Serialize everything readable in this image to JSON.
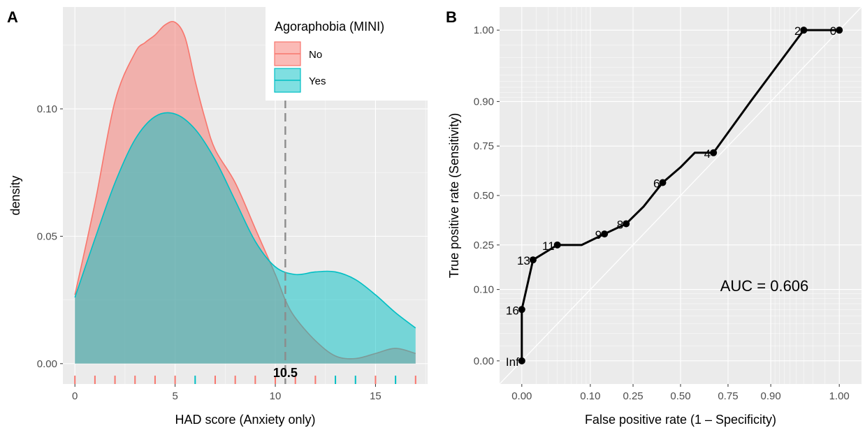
{
  "chart_data": [
    {
      "panel": "A",
      "type": "area",
      "xlabel": "HAD score (Anxiety only)",
      "ylabel": "density",
      "xlim": [
        -0.6,
        17.6
      ],
      "ylim": [
        -0.008,
        0.14
      ],
      "x_ticks": [
        0,
        5,
        10,
        15
      ],
      "y_ticks": [
        0.0,
        0.05,
        0.1
      ],
      "y_tick_labels": [
        "0.00",
        "0.05",
        "0.10"
      ],
      "grid": true,
      "legend": {
        "title": "Agoraphobia (MINI)",
        "placement": "top-right",
        "entries": [
          "No",
          "Yes"
        ]
      },
      "series": [
        {
          "name": "No",
          "color": "#F8766D",
          "fill": "#F8766D",
          "x": [
            0,
            1,
            2,
            3,
            3.5,
            4,
            4.5,
            5,
            5.5,
            6,
            6.5,
            7,
            8,
            9,
            10,
            10.5,
            11,
            12,
            13,
            14,
            15,
            16,
            17
          ],
          "y": [
            0.027,
            0.063,
            0.103,
            0.122,
            0.126,
            0.129,
            0.133,
            0.134,
            0.128,
            0.111,
            0.096,
            0.084,
            0.071,
            0.053,
            0.035,
            0.025,
            0.018,
            0.009,
            0.003,
            0.002,
            0.004,
            0.006,
            0.004
          ]
        },
        {
          "name": "Yes",
          "color": "#00BFC4",
          "fill": "#00BFC4",
          "x": [
            0,
            1,
            2,
            3,
            4,
            5,
            6,
            7,
            8,
            9,
            10,
            11,
            12,
            13,
            14,
            15,
            16,
            17
          ],
          "y": [
            0.026,
            0.049,
            0.071,
            0.088,
            0.097,
            0.098,
            0.092,
            0.08,
            0.064,
            0.048,
            0.038,
            0.035,
            0.036,
            0.036,
            0.033,
            0.027,
            0.02,
            0.014
          ]
        }
      ],
      "rug": [
        {
          "x": 0,
          "group": "No"
        },
        {
          "x": 1,
          "group": "No"
        },
        {
          "x": 2,
          "group": "No"
        },
        {
          "x": 3,
          "group": "No"
        },
        {
          "x": 4,
          "group": "No"
        },
        {
          "x": 5,
          "group": "No"
        },
        {
          "x": 6,
          "group": "Yes"
        },
        {
          "x": 7,
          "group": "No"
        },
        {
          "x": 8,
          "group": "No"
        },
        {
          "x": 9,
          "group": "No"
        },
        {
          "x": 10,
          "group": "No"
        },
        {
          "x": 11,
          "group": "No"
        },
        {
          "x": 12,
          "group": "No"
        },
        {
          "x": 13,
          "group": "Yes"
        },
        {
          "x": 14,
          "group": "Yes"
        },
        {
          "x": 15,
          "group": "No"
        },
        {
          "x": 16,
          "group": "Yes"
        },
        {
          "x": 17,
          "group": "No"
        }
      ],
      "cutoff": {
        "x": 10.5,
        "label": "10.5"
      }
    },
    {
      "panel": "B",
      "type": "line",
      "xlabel": "False positive rate (1 – Specificity)",
      "ylabel": "True positive rate (Sensitivity)",
      "x_ticks": [
        0.0,
        0.1,
        0.25,
        0.5,
        0.75,
        0.9,
        1.0
      ],
      "x_tick_labels": [
        "0.00",
        "0.10",
        "0.25",
        "0.50",
        "0.75",
        "0.90",
        "1.00"
      ],
      "y_ticks": [
        0.0,
        0.1,
        0.25,
        0.5,
        0.75,
        0.9,
        1.0
      ],
      "y_tick_labels": [
        "0.00",
        "0.10",
        "0.25",
        "0.50",
        "0.75",
        "0.90",
        "1.00"
      ],
      "scale": "probit",
      "grid": true,
      "annotation": "AUC = 0.606",
      "curve": [
        {
          "fpr": 0.0,
          "tpr": 0.0
        },
        {
          "fpr": 0.005,
          "tpr": 0.02
        },
        {
          "fpr": 0.012,
          "tpr": 0.06
        },
        {
          "fpr": 0.018,
          "tpr": 0.19
        },
        {
          "fpr": 0.04,
          "tpr": 0.25
        },
        {
          "fpr": 0.08,
          "tpr": 0.25
        },
        {
          "fpr": 0.14,
          "tpr": 0.3
        },
        {
          "fpr": 0.22,
          "tpr": 0.35
        },
        {
          "fpr": 0.3,
          "tpr": 0.44
        },
        {
          "fpr": 0.4,
          "tpr": 0.57
        },
        {
          "fpr": 0.5,
          "tpr": 0.65
        },
        {
          "fpr": 0.58,
          "tpr": 0.72
        },
        {
          "fpr": 0.68,
          "tpr": 0.72
        },
        {
          "fpr": 0.84,
          "tpr": 0.9
        },
        {
          "fpr": 0.96,
          "tpr": 1.0
        },
        {
          "fpr": 1.0,
          "tpr": 1.0
        }
      ],
      "thresholds": [
        {
          "label": "0",
          "fpr": 1.0,
          "tpr": 1.0
        },
        {
          "label": "2",
          "fpr": 0.96,
          "tpr": 1.0
        },
        {
          "label": "4",
          "fpr": 0.68,
          "tpr": 0.72
        },
        {
          "label": "6",
          "fpr": 0.4,
          "tpr": 0.57
        },
        {
          "label": "8",
          "fpr": 0.22,
          "tpr": 0.35
        },
        {
          "label": "9",
          "fpr": 0.14,
          "tpr": 0.3
        },
        {
          "label": "11",
          "fpr": 0.04,
          "tpr": 0.25
        },
        {
          "label": "13",
          "fpr": 0.018,
          "tpr": 0.19
        },
        {
          "label": "16",
          "fpr": 0.012,
          "tpr": 0.06
        },
        {
          "label": "Inf",
          "fpr": 0.0,
          "tpr": 0.0
        }
      ]
    }
  ],
  "tags": [
    "A",
    "B"
  ]
}
